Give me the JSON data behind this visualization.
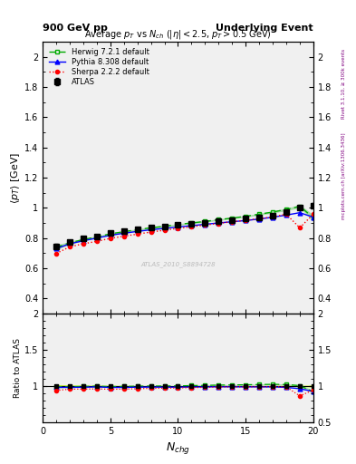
{
  "title_left": "900 GeV pp",
  "title_right": "Underlying Event",
  "plot_title": "Average $p_T$ vs $N_{ch}$ ($|\\eta| < 2.5$, $p_T > 0.5$ GeV)",
  "watermark": "ATLAS_2010_S8894728",
  "right_label": "mcplots.cern.ch [arXiv:1306.3436]",
  "right_label2": "Rivet 3.1.10, ≥ 300k events",
  "xlabel": "$N_{chg}$",
  "ylabel_main": "$\\langle p_T \\rangle$ [GeV]",
  "ylabel_ratio": "Ratio to ATLAS",
  "xlim": [
    0,
    20
  ],
  "ylim_main": [
    0.3,
    2.1
  ],
  "ylim_ratio": [
    0.5,
    2.0
  ],
  "yticks_main": [
    0.4,
    0.6,
    0.8,
    1.0,
    1.2,
    1.4,
    1.6,
    1.8,
    2.0
  ],
  "yticks_ratio": [
    1.0,
    1.5,
    2.0
  ],
  "yticks_ratio_right": [
    0.5,
    1.0,
    1.5,
    2.0
  ],
  "atlas_x": [
    1,
    2,
    3,
    4,
    5,
    6,
    7,
    8,
    9,
    10,
    11,
    12,
    13,
    14,
    15,
    16,
    17,
    18,
    19,
    20
  ],
  "atlas_y": [
    0.745,
    0.775,
    0.795,
    0.81,
    0.835,
    0.848,
    0.858,
    0.868,
    0.878,
    0.888,
    0.895,
    0.902,
    0.91,
    0.918,
    0.928,
    0.938,
    0.95,
    0.97,
    1.005,
    1.015
  ],
  "atlas_yerr": [
    0.015,
    0.012,
    0.01,
    0.009,
    0.008,
    0.007,
    0.006,
    0.006,
    0.005,
    0.005,
    0.005,
    0.005,
    0.005,
    0.005,
    0.006,
    0.006,
    0.007,
    0.008,
    0.01,
    0.015
  ],
  "herwig_x": [
    1,
    2,
    3,
    4,
    5,
    6,
    7,
    8,
    9,
    10,
    11,
    12,
    13,
    14,
    15,
    16,
    17,
    18,
    19,
    20
  ],
  "herwig_y": [
    0.738,
    0.768,
    0.79,
    0.808,
    0.828,
    0.842,
    0.856,
    0.868,
    0.878,
    0.89,
    0.9,
    0.91,
    0.922,
    0.932,
    0.944,
    0.958,
    0.972,
    0.99,
    1.01,
    0.935
  ],
  "herwig_band_lo": [
    0.015,
    0.01,
    0.008,
    0.007,
    0.006,
    0.006,
    0.005,
    0.005,
    0.005,
    0.005,
    0.005,
    0.005,
    0.005,
    0.005,
    0.005,
    0.006,
    0.007,
    0.008,
    0.01,
    0.02
  ],
  "herwig_band_hi": [
    0.015,
    0.01,
    0.008,
    0.007,
    0.006,
    0.006,
    0.005,
    0.005,
    0.005,
    0.005,
    0.005,
    0.005,
    0.005,
    0.005,
    0.005,
    0.006,
    0.007,
    0.008,
    0.01,
    0.02
  ],
  "pythia_x": [
    1,
    2,
    3,
    4,
    5,
    6,
    7,
    8,
    9,
    10,
    11,
    12,
    13,
    14,
    15,
    16,
    17,
    18,
    19,
    20
  ],
  "pythia_y": [
    0.73,
    0.762,
    0.782,
    0.8,
    0.818,
    0.832,
    0.844,
    0.855,
    0.864,
    0.873,
    0.882,
    0.891,
    0.9,
    0.908,
    0.916,
    0.926,
    0.938,
    0.952,
    0.968,
    0.938
  ],
  "sherpa_x": [
    1,
    2,
    3,
    4,
    5,
    6,
    7,
    8,
    9,
    10,
    11,
    12,
    13,
    14,
    15,
    16,
    17,
    18,
    19,
    20
  ],
  "sherpa_y": [
    0.698,
    0.742,
    0.762,
    0.778,
    0.798,
    0.812,
    0.826,
    0.84,
    0.852,
    0.864,
    0.875,
    0.886,
    0.897,
    0.908,
    0.918,
    0.928,
    0.94,
    0.958,
    0.868,
    0.958
  ],
  "herwig_ratio": [
    0.992,
    0.991,
    0.994,
    0.998,
    0.992,
    0.994,
    0.998,
    1.0,
    1.0,
    1.002,
    1.006,
    1.009,
    1.013,
    1.015,
    1.017,
    1.021,
    1.023,
    1.021,
    1.005,
    0.921
  ],
  "herwig_ratio_band_lo": [
    0.018,
    0.014,
    0.011,
    0.01,
    0.009,
    0.008,
    0.007,
    0.007,
    0.006,
    0.006,
    0.006,
    0.006,
    0.006,
    0.006,
    0.006,
    0.007,
    0.008,
    0.009,
    0.012,
    0.022
  ],
  "herwig_ratio_band_hi": [
    0.018,
    0.014,
    0.011,
    0.01,
    0.009,
    0.008,
    0.007,
    0.007,
    0.006,
    0.006,
    0.006,
    0.006,
    0.006,
    0.006,
    0.006,
    0.007,
    0.008,
    0.009,
    0.012,
    0.022
  ],
  "pythia_ratio": [
    0.981,
    0.982,
    0.983,
    0.988,
    0.98,
    0.981,
    0.984,
    0.985,
    0.984,
    0.984,
    0.985,
    0.988,
    0.989,
    0.989,
    0.988,
    0.988,
    0.988,
    0.981,
    0.963,
    0.924
  ],
  "sherpa_ratio": [
    0.938,
    0.957,
    0.958,
    0.96,
    0.956,
    0.957,
    0.963,
    0.968,
    0.97,
    0.973,
    0.978,
    0.982,
    0.986,
    0.989,
    0.989,
    0.989,
    0.99,
    0.988,
    0.864,
    0.944
  ],
  "atlas_color": "#000000",
  "herwig_color": "#00aa00",
  "pythia_color": "#0000ff",
  "sherpa_color": "#ff0000",
  "panel_bg": "#f0f0f0"
}
